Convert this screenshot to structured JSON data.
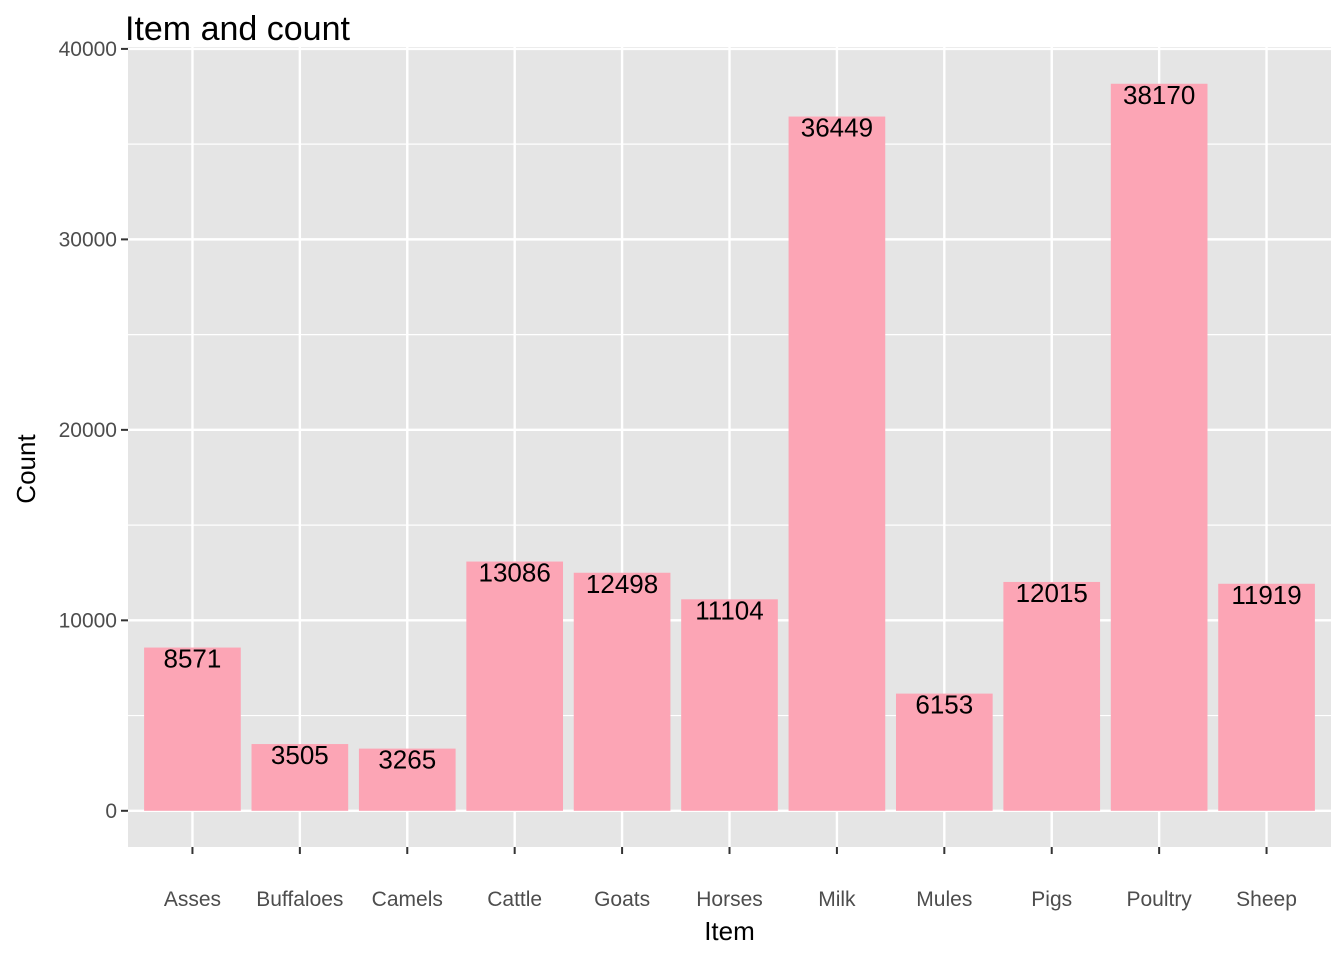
{
  "chart_data": {
    "type": "bar",
    "title": "Item and count",
    "xlabel": "Item",
    "ylabel": "Count",
    "categories": [
      "Asses",
      "Buffaloes",
      "Camels",
      "Cattle",
      "Goats",
      "Horses",
      "Milk",
      "Mules",
      "Pigs",
      "Poultry",
      "Sheep"
    ],
    "values": [
      8571,
      3505,
      3265,
      13086,
      12498,
      11104,
      36449,
      6153,
      12015,
      38170,
      11919
    ],
    "data_labels": [
      "8571",
      "3505",
      "3265",
      "13086",
      "12498",
      "11104",
      "36449",
      "6153",
      "12015",
      "38170",
      "11919"
    ],
    "yticks": [
      0,
      10000,
      20000,
      30000,
      40000
    ],
    "ytick_labels": [
      "0",
      "10000",
      "20000",
      "30000",
      "40000"
    ],
    "ylim": [
      -1900,
      40100
    ],
    "grid": true,
    "legend": "none",
    "colors": {
      "bar": "#FCA5B5",
      "panel": "#E5E5E5",
      "grid": "#FFFFFF",
      "tick": "#333333"
    }
  }
}
